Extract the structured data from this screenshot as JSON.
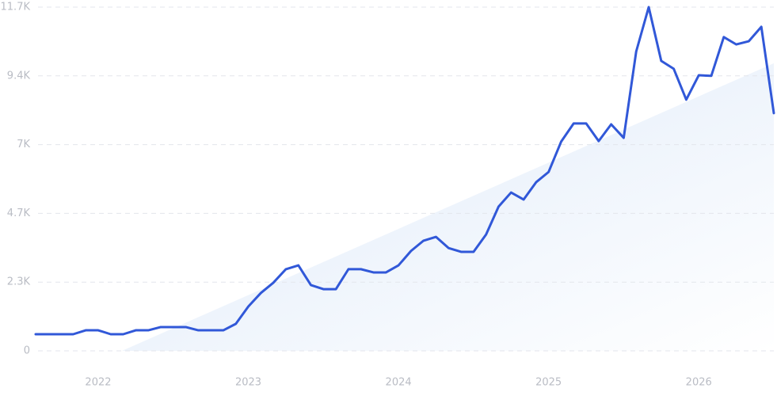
{
  "chart_data": {
    "type": "line",
    "categories": [
      null,
      null,
      null,
      null,
      null,
      "2022",
      null,
      null,
      null,
      null,
      null,
      null,
      null,
      null,
      null,
      null,
      null,
      "2023",
      null,
      null,
      null,
      null,
      null,
      null,
      null,
      null,
      null,
      null,
      null,
      "2024",
      null,
      null,
      null,
      null,
      null,
      null,
      null,
      null,
      null,
      null,
      null,
      "2025",
      null,
      null,
      null,
      null,
      null,
      null,
      null,
      null,
      null,
      null,
      null,
      "2026",
      null,
      null,
      null,
      null,
      null,
      null
    ],
    "values": [
      566,
      566,
      566,
      566,
      700,
      700,
      566,
      566,
      700,
      700,
      810,
      810,
      810,
      700,
      700,
      700,
      920,
      1510,
      1970,
      2320,
      2780,
      2910,
      2240,
      2100,
      2100,
      2780,
      2780,
      2670,
      2670,
      2910,
      3400,
      3750,
      3880,
      3500,
      3370,
      3370,
      3960,
      4910,
      5390,
      5150,
      5740,
      6090,
      7120,
      7740,
      7740,
      7140,
      7710,
      7250,
      10190,
      11700,
      9870,
      9600,
      8550,
      9380,
      9360,
      10680,
      10430,
      10540,
      11030,
      8090
    ],
    "color": "#3158d8",
    "trend": {
      "x": [
        6.9,
        59
      ],
      "values": [
        0,
        9790
      ],
      "color": "#e6effb"
    },
    "ylim": [
      0,
      11700
    ],
    "yticks": [
      0,
      {
        "value": 2340,
        "label": "2.3K"
      },
      {
        "value": 4680,
        "label": "4.7K"
      },
      {
        "value": 7020,
        "label": "7K"
      },
      {
        "value": 9360,
        "label": "9.4K"
      },
      {
        "value": 11700,
        "label": "11.7K"
      }
    ],
    "grid": true
  }
}
